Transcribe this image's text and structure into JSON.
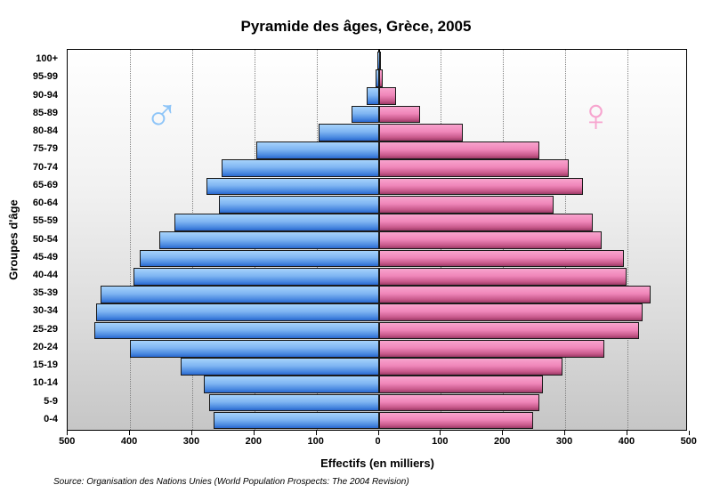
{
  "chart_data": {
    "type": "bar",
    "subtype": "population-pyramid",
    "title": "Pyramide des âges, Grèce, 2005",
    "xlabel": "Effectifs (en milliers)",
    "ylabel": "Groupes d'âge",
    "source": "Source: Organisation des Nations Unies (World Population Prospects: The 2004 Revision)",
    "xlim": [
      -500,
      500
    ],
    "x_ticks": [
      "500",
      "400",
      "300",
      "200",
      "100",
      "0",
      "100",
      "200",
      "300",
      "400",
      "500"
    ],
    "grid": true,
    "categories": [
      "100+",
      "95-99",
      "90-94",
      "85-89",
      "80-84",
      "75-79",
      "70-74",
      "65-69",
      "60-64",
      "55-59",
      "50-54",
      "45-49",
      "40-44",
      "35-39",
      "30-34",
      "25-29",
      "20-24",
      "15-19",
      "10-14",
      "5-9",
      "0-4"
    ],
    "series": [
      {
        "name": "Hommes",
        "symbol": "♂",
        "color": "#4a89e0",
        "side": "left",
        "values": [
          1,
          5,
          19,
          43,
          97,
          197,
          253,
          277,
          257,
          329,
          353,
          384,
          395,
          447,
          454,
          457,
          400,
          318,
          282,
          273,
          265
        ]
      },
      {
        "name": "Femmes",
        "symbol": "♀",
        "color": "#ef86b9",
        "side": "right",
        "values": [
          1,
          7,
          28,
          67,
          136,
          258,
          306,
          329,
          281,
          345,
          358,
          394,
          398,
          437,
          424,
          419,
          363,
          295,
          264,
          258,
          249
        ]
      }
    ]
  },
  "symbols": {
    "male": "♂",
    "female": "♀"
  }
}
